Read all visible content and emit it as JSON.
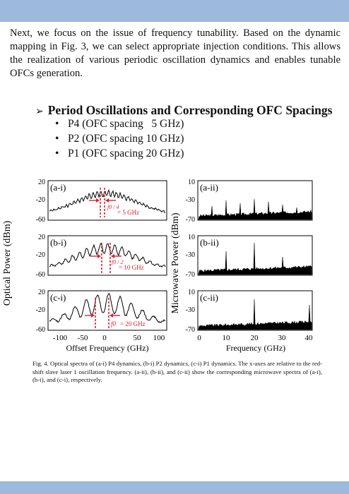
{
  "paragraph": "Next, we focus on the issue of frequency tunability. Based on the dynamic mapping in Fig. 3, we can select appropriate injection conditions. This allows the realization of various periodic oscillation dynamics and enables tunable OFCs generation.",
  "heading": "Period Oscillations and Corresponding OFC Spacings",
  "bullets": [
    "P4 (OFC spacing   5 GHz)",
    "P2 (OFC spacing 10 GHz)",
    "P1 (OFC spacing 20 GHz)"
  ],
  "figure": {
    "left_ylabel": "Optical Power (dBm)",
    "right_ylabel": "Microwave Power (dBm)",
    "left_xlabel": "Offset Frequency (GHz)",
    "right_xlabel": "Frequency (GHz)",
    "left_xticks": [
      "-100",
      "-50",
      "0",
      "50",
      "100"
    ],
    "right_xticks": [
      "0",
      "10",
      "20",
      "30",
      "40"
    ],
    "left_yticks": [
      "20",
      "-20",
      "-60"
    ],
    "right_yticks": [
      "10",
      "-30",
      "-70"
    ],
    "accent_color": "#d9232d",
    "panels": [
      {
        "label": "(a-i)",
        "annotation_frac": "f0 / 4",
        "annotation_value": "= 5 GHz",
        "spacing_ghz": 5
      },
      {
        "label": "(b-i)",
        "annotation_frac": "f0 / 2",
        "annotation_value": "= 10 GHz",
        "spacing_ghz": 10
      },
      {
        "label": "(c-i)",
        "annotation_frac": "f0",
        "annotation_value": "= 20 GHz",
        "spacing_ghz": 20
      },
      {
        "label": "(a-ii)",
        "peaks_ghz": [
          5,
          10,
          15,
          20,
          25,
          30,
          35
        ]
      },
      {
        "label": "(b-ii)",
        "peaks_ghz": [
          10,
          20,
          30
        ]
      },
      {
        "label": "(c-ii)",
        "peaks_ghz": [
          20,
          40
        ]
      }
    ]
  },
  "caption": "Fig. 4. Optical spectra of (a-i) P4 dynamics, (b-i) P2 dynamics, (c-i) P1 dynamics. The x-axes are relative to the red-shift slave laser 1 oscillation frequency. (a-ii), (b-ii), and (c-ii) show the corresponding microwave spectra of (a-i), (b-i), and (c-i), respectively."
}
